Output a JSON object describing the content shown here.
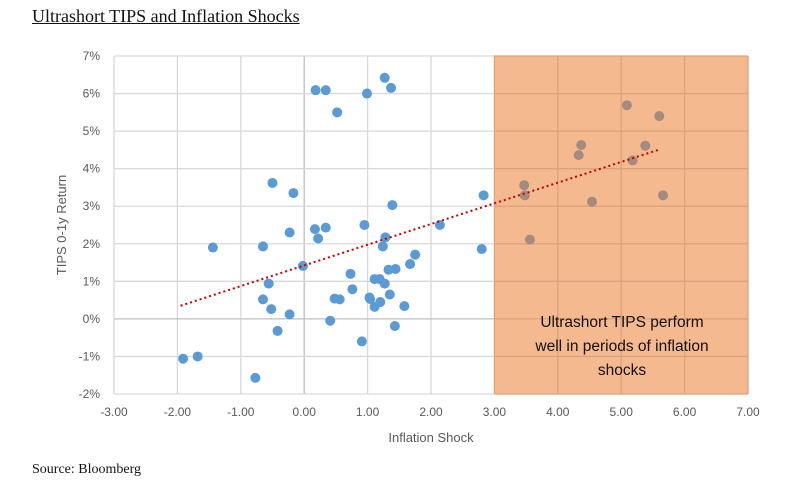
{
  "title": "Ultrashort TIPS and Inflation Shocks",
  "source": "Source: Bloomberg",
  "chart_data": {
    "type": "scatter",
    "title": "Ultrashort TIPS and Inflation Shocks",
    "xlabel": "Inflation Shock",
    "ylabel": "TIPS 0-1y Return",
    "xlim": [
      -3,
      7
    ],
    "ylim": [
      -2,
      7
    ],
    "xticks": [
      "-3.00",
      "-2.00",
      "-1.00",
      "0.00",
      "1.00",
      "2.00",
      "3.00",
      "4.00",
      "5.00",
      "6.00",
      "7.00"
    ],
    "yticks": [
      "-2%",
      "-1%",
      "0%",
      "1%",
      "2%",
      "3%",
      "4%",
      "5%",
      "6%",
      "7%"
    ],
    "grid": true,
    "shaded_region": {
      "x_from": 3,
      "x_to": 7,
      "color": "#f4b98f"
    },
    "annotation": [
      "Ultrashort TIPS perform",
      "well in periods of inflation",
      "shocks"
    ],
    "colors": {
      "points": "#5b9bd5",
      "points_shaded": "#a48b80",
      "trend": "#c00000"
    },
    "trendline": {
      "x": [
        -1.95,
        5.62
      ],
      "y": [
        0.35,
        4.52
      ],
      "style": "dotted"
    },
    "points": [
      [
        0.18,
        6.09
      ],
      [
        0.34,
        6.09
      ],
      [
        1.27,
        6.42
      ],
      [
        1.37,
        6.15
      ],
      [
        0.99,
        6.0
      ],
      [
        0.52,
        5.5
      ],
      [
        -0.5,
        3.62
      ],
      [
        -0.17,
        3.35
      ],
      [
        1.39,
        3.03
      ],
      [
        2.83,
        3.29
      ],
      [
        2.14,
        2.5
      ],
      [
        0.95,
        2.5
      ],
      [
        -0.23,
        2.3
      ],
      [
        0.17,
        2.39
      ],
      [
        0.34,
        2.43
      ],
      [
        0.22,
        2.14
      ],
      [
        1.28,
        2.17
      ],
      [
        -1.44,
        1.9
      ],
      [
        -0.65,
        1.93
      ],
      [
        1.24,
        1.93
      ],
      [
        2.8,
        1.86
      ],
      [
        1.75,
        1.71
      ],
      [
        1.67,
        1.46
      ],
      [
        -0.02,
        1.41
      ],
      [
        1.33,
        1.31
      ],
      [
        1.44,
        1.33
      ],
      [
        0.73,
        1.2
      ],
      [
        1.11,
        1.06
      ],
      [
        1.19,
        1.06
      ],
      [
        1.27,
        0.94
      ],
      [
        -0.56,
        0.94
      ],
      [
        0.76,
        0.79
      ],
      [
        1.35,
        0.65
      ],
      [
        -0.65,
        0.52
      ],
      [
        0.48,
        0.54
      ],
      [
        0.56,
        0.52
      ],
      [
        1.03,
        0.57
      ],
      [
        1.04,
        0.53
      ],
      [
        1.2,
        0.45
      ],
      [
        1.11,
        0.32
      ],
      [
        1.58,
        0.34
      ],
      [
        -0.52,
        0.26
      ],
      [
        -0.23,
        0.12
      ],
      [
        0.41,
        -0.05
      ],
      [
        1.43,
        -0.19
      ],
      [
        -0.42,
        -0.32
      ],
      [
        0.91,
        -0.6
      ],
      [
        -1.91,
        -1.06
      ],
      [
        -1.68,
        -1.0
      ],
      [
        -0.77,
        -1.57
      ],
      [
        5.09,
        5.69
      ],
      [
        5.6,
        5.4
      ],
      [
        4.37,
        4.63
      ],
      [
        4.33,
        4.36
      ],
      [
        5.38,
        4.61
      ],
      [
        5.18,
        4.22
      ],
      [
        3.47,
        3.56
      ],
      [
        3.48,
        3.29
      ],
      [
        4.54,
        3.12
      ],
      [
        5.66,
        3.29
      ],
      [
        3.56,
        2.11
      ]
    ]
  }
}
